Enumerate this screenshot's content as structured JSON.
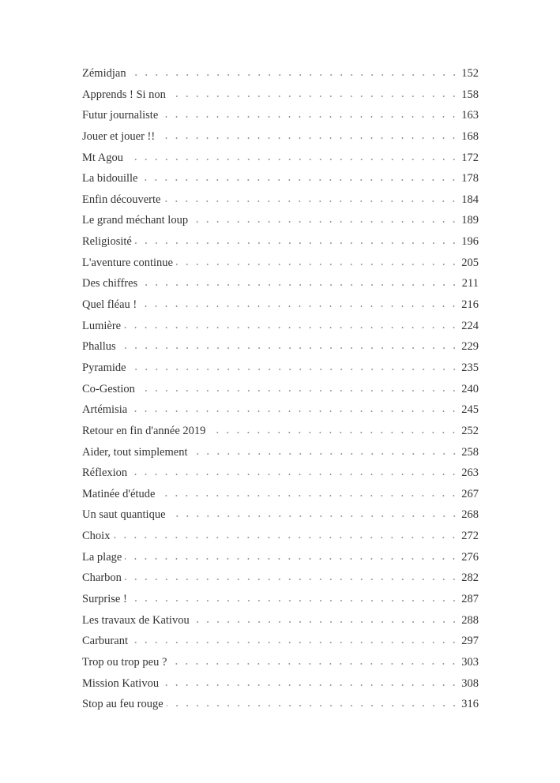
{
  "toc": [
    {
      "title": "Zémidjan",
      "page": "152"
    },
    {
      "title": "Apprends ! Si non",
      "page": "158"
    },
    {
      "title": "Futur journaliste",
      "page": "163"
    },
    {
      "title": "Jouer et jouer !!",
      "page": "168"
    },
    {
      "title": "Mt Agou",
      "page": "172"
    },
    {
      "title": "La bidouille",
      "page": "178"
    },
    {
      "title": "Enfin découverte",
      "page": "184"
    },
    {
      "title": "Le grand méchant loup",
      "page": "189"
    },
    {
      "title": "Religiosité",
      "page": "196"
    },
    {
      "title": "L'aventure continue",
      "page": "205"
    },
    {
      "title": "Des chiffres",
      "page": "211"
    },
    {
      "title": "Quel fléau !",
      "page": "216"
    },
    {
      "title": "Lumière",
      "page": "224"
    },
    {
      "title": "Phallus",
      "page": "229"
    },
    {
      "title": "Pyramide",
      "page": "235"
    },
    {
      "title": "Co-Gestion",
      "page": "240"
    },
    {
      "title": "Artémisia",
      "page": "245"
    },
    {
      "title": "Retour en fin d'année 2019",
      "page": "252"
    },
    {
      "title": "Aider, tout simplement",
      "page": "258"
    },
    {
      "title": "Réflexion",
      "page": "263"
    },
    {
      "title": "Matinée d'étude",
      "page": "267"
    },
    {
      "title": "Un saut quantique",
      "page": "268"
    },
    {
      "title": "Choix",
      "page": "272"
    },
    {
      "title": "La plage",
      "page": "276"
    },
    {
      "title": "Charbon",
      "page": "282"
    },
    {
      "title": "Surprise !",
      "page": "287"
    },
    {
      "title": "Les travaux de Kativou",
      "page": "288"
    },
    {
      "title": "Carburant",
      "page": "297"
    },
    {
      "title": "Trop ou trop peu ?",
      "page": "303"
    },
    {
      "title": "Mission Kativou",
      "page": "308"
    },
    {
      "title": "Stop au feu rouge",
      "page": "316"
    }
  ]
}
